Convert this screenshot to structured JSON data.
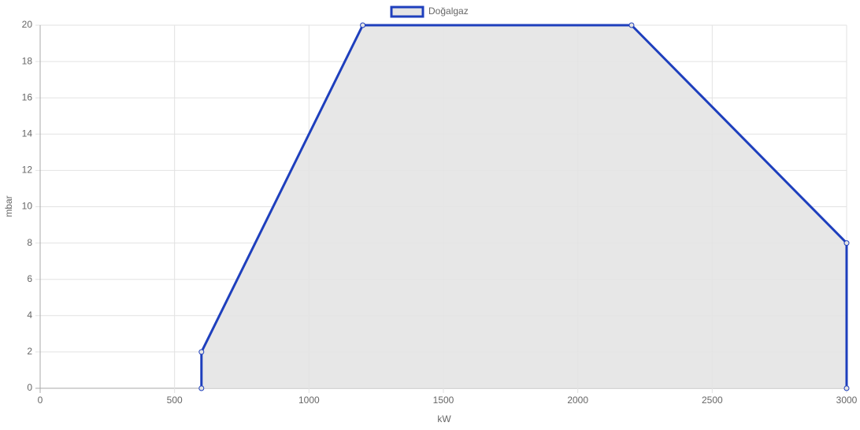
{
  "chart_data": {
    "type": "line",
    "xlabel": "kW",
    "ylabel": "mbar",
    "x": [
      600,
      600,
      1200,
      2200,
      3000,
      3000
    ],
    "series": [
      {
        "name": "Doğalgaz",
        "color": "#1e3fbd",
        "fill": "#e4e4e4",
        "values": [
          0,
          2,
          20,
          20,
          8,
          0
        ]
      }
    ],
    "xlim": [
      0,
      3000
    ],
    "xticks": [
      0,
      500,
      1000,
      1500,
      2000,
      2500,
      3000
    ],
    "ylim": [
      0,
      20
    ],
    "yticks": [
      0,
      2,
      4,
      6,
      8,
      10,
      12,
      14,
      16,
      18,
      20
    ],
    "grid": true,
    "legend": "top"
  }
}
